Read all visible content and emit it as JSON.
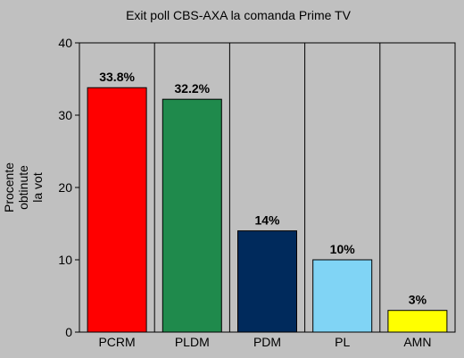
{
  "chart_data": {
    "type": "bar",
    "title": "Exit poll CBS-AXA la comanda Prime TV",
    "xlabel": "",
    "ylabel_lines": [
      "Procente",
      "obtinute",
      "la vot"
    ],
    "categories": [
      "PCRM",
      "PLDM",
      "PDM",
      "PL",
      "AMN"
    ],
    "values": [
      33.8,
      32.2,
      14,
      10,
      3
    ],
    "data_labels": [
      "33.8%",
      "32.2%",
      "14%",
      "10%",
      "3%"
    ],
    "bar_colors": [
      "#ff0000",
      "#1f8a4c",
      "#002a5c",
      "#80d4f5",
      "#ffff00"
    ],
    "ylim": [
      0,
      40
    ],
    "yticks": [
      0,
      10,
      20,
      30,
      40
    ],
    "grid": "vertical-category-separators",
    "legend": "none"
  }
}
